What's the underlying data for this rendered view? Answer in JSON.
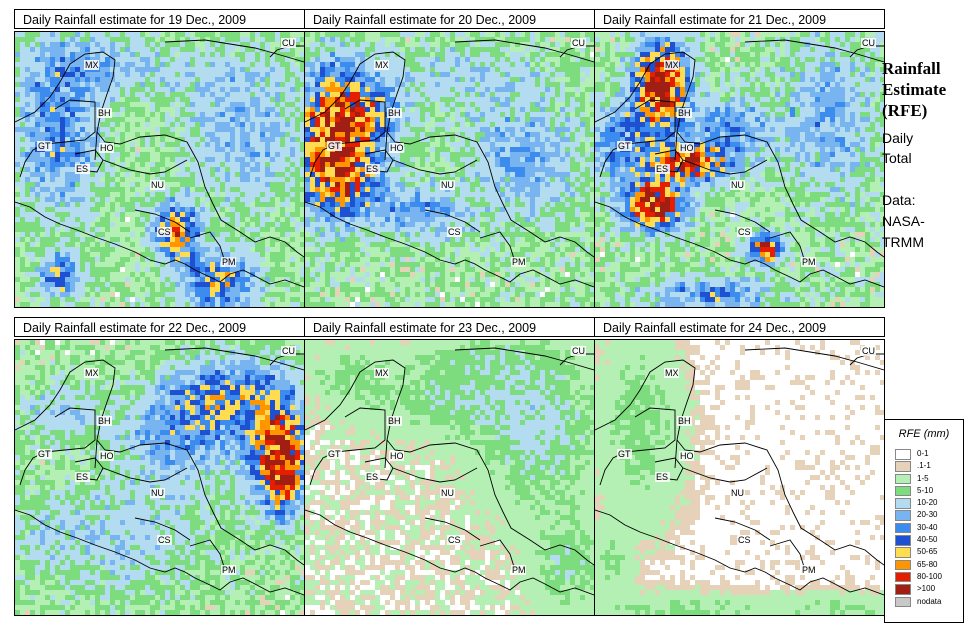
{
  "panels": [
    {
      "title": "Daily Rainfall estimate for  19 Dec., 2009",
      "seed": 19,
      "blobs": [
        [
          0.14,
          0.35,
          0.13,
          0.28,
          30
        ],
        [
          0.55,
          0.72,
          0.07,
          0.09,
          70
        ],
        [
          0.7,
          0.9,
          0.12,
          0.1,
          45
        ],
        [
          0.15,
          0.88,
          0.07,
          0.07,
          40
        ],
        [
          0.78,
          0.35,
          0.2,
          0.25,
          18
        ],
        [
          0.25,
          0.1,
          0.2,
          0.1,
          15
        ],
        [
          0.5,
          0.15,
          0.35,
          0.08,
          8
        ]
      ],
      "base": 6
    },
    {
      "title": "Daily Rainfall estimate for  20 Dec., 2009",
      "seed": 20,
      "blobs": [
        [
          0.08,
          0.4,
          0.1,
          0.22,
          75
        ],
        [
          0.18,
          0.3,
          0.12,
          0.15,
          55
        ],
        [
          0.15,
          0.55,
          0.12,
          0.1,
          40
        ],
        [
          0.4,
          0.65,
          0.15,
          0.08,
          25
        ],
        [
          0.75,
          0.45,
          0.18,
          0.2,
          20
        ],
        [
          0.55,
          0.15,
          0.25,
          0.1,
          12
        ]
      ],
      "base": 7
    },
    {
      "title": "Daily Rainfall estimate for  21 Dec., 2009",
      "seed": 21,
      "blobs": [
        [
          0.22,
          0.18,
          0.08,
          0.13,
          110
        ],
        [
          0.32,
          0.47,
          0.12,
          0.06,
          85
        ],
        [
          0.2,
          0.62,
          0.09,
          0.08,
          100
        ],
        [
          0.58,
          0.78,
          0.05,
          0.05,
          80
        ],
        [
          0.1,
          0.4,
          0.12,
          0.15,
          30
        ],
        [
          0.45,
          0.35,
          0.15,
          0.1,
          25
        ],
        [
          0.8,
          0.3,
          0.15,
          0.25,
          20
        ],
        [
          0.4,
          0.95,
          0.2,
          0.06,
          30
        ]
      ],
      "base": 7
    },
    {
      "title": "Daily Rainfall estimate for  22 Dec., 2009",
      "seed": 22,
      "blobs": [
        [
          0.92,
          0.45,
          0.06,
          0.15,
          90
        ],
        [
          0.88,
          0.35,
          0.1,
          0.2,
          45
        ],
        [
          0.7,
          0.2,
          0.18,
          0.12,
          40
        ],
        [
          0.55,
          0.35,
          0.18,
          0.15,
          25
        ],
        [
          0.15,
          0.25,
          0.12,
          0.1,
          15
        ],
        [
          0.4,
          0.7,
          0.25,
          0.2,
          12
        ],
        [
          0.1,
          0.7,
          0.15,
          0.15,
          8
        ]
      ],
      "base": 5
    },
    {
      "title": "Daily Rainfall estimate for  23 Dec., 2009",
      "seed": 23,
      "blobs": [
        [
          0.8,
          0.3,
          0.18,
          0.25,
          12
        ],
        [
          0.5,
          0.2,
          0.25,
          0.12,
          8
        ],
        [
          0.15,
          0.12,
          0.12,
          0.08,
          6
        ],
        [
          0.9,
          0.8,
          0.1,
          0.15,
          8
        ],
        [
          0.6,
          0.05,
          0.2,
          0.05,
          6
        ]
      ],
      "base": 1
    },
    {
      "title": "Daily Rainfall estimate for  24 Dec., 2009",
      "seed": 24,
      "blobs": [
        [
          0.15,
          0.3,
          0.12,
          0.3,
          7
        ],
        [
          0.3,
          0.97,
          0.3,
          0.05,
          6
        ],
        [
          0.85,
          0.97,
          0.2,
          0.05,
          5
        ],
        [
          0.05,
          0.8,
          0.06,
          0.12,
          5
        ]
      ],
      "base": 0.3
    }
  ],
  "place_labels": [
    "MX",
    "BH",
    "GT",
    "HO",
    "ES",
    "NU",
    "CS",
    "PM",
    "CU"
  ],
  "sidebar": {
    "title_line1": "Rainfall",
    "title_line2": "Estimate",
    "title_line3": "(RFE)",
    "sub_line1": "Daily",
    "sub_line2": "Total",
    "data_line1": "Data:",
    "data_line2": "NASA-",
    "data_line3": "TRMM"
  },
  "legend": {
    "title": "RFE (mm)",
    "items": [
      {
        "label": "0-1",
        "color": "#ffffff"
      },
      {
        "label": ".1-1",
        "color": "#e6d2b9"
      },
      {
        "label": "1-5",
        "color": "#b4f0b4"
      },
      {
        "label": "5-10",
        "color": "#7ddc7d"
      },
      {
        "label": "10-20",
        "color": "#b4dcf0"
      },
      {
        "label": "20-30",
        "color": "#78b4f0"
      },
      {
        "label": "30-40",
        "color": "#3c8cf0"
      },
      {
        "label": "40-50",
        "color": "#1e50d2"
      },
      {
        "label": "50-65",
        "color": "#ffdc50"
      },
      {
        "label": "65-80",
        "color": "#ff9600"
      },
      {
        "label": "80-100",
        "color": "#e61e00"
      },
      {
        "label": ">100",
        "color": "#a01e14"
      },
      {
        "label": "nodata",
        "color": "#c8c8c8"
      }
    ]
  }
}
